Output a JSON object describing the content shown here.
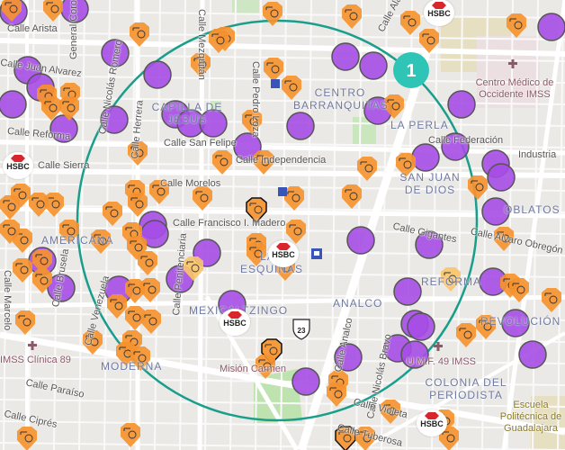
{
  "map": {
    "radius_circle_color": "#1a9e8c",
    "cluster": {
      "count": "1",
      "color": "#2ec4b6"
    },
    "colors": {
      "purple_marker": "#a64ce6",
      "orange_marker": "#f5922f",
      "light_marker": "#f9c46b",
      "background": "#ebe9e6"
    },
    "icons": {
      "orange_marker": "money-bag-gun-icon",
      "light_marker": "group-people-icon",
      "bank": "hsbc-bank-icon",
      "hospital": "medical-cross-icon",
      "transit": "bus-station-icon",
      "highway": "highway-shield-icon"
    },
    "streets": [
      "Calle Arista",
      "General Coronado",
      "Calle Nicolás Romero",
      "Calle Pedro Loza",
      "Calle Juan Alvarez",
      "Calle Reforma",
      "Calle San Felipe",
      "Calle Independencia",
      "Calle Morelos",
      "Calle Francisco I. Madero",
      "Calle Alameda",
      "Calle Federación",
      "Industria",
      "Calle Gigantes",
      "Calle Alvaro Obregón",
      "Calle Brusela",
      "Calle Venezuela",
      "Calle Penitenciaria",
      "Calle Nicolás Bravo",
      "Calle Analco",
      "Calle Paraíso",
      "Calle Ciprés",
      "Calle Tuberosa",
      "Calle Violeta",
      "Calle Herrera",
      "Calle Sierra",
      "Calle Marcelo",
      "Calle Mezquitán"
    ],
    "neighborhoods": [
      "CENTRO BARRANQUITAS",
      "LA PERLA",
      "SAN JUAN DE DIOS",
      "CAPILLA DE JESÚS",
      "AMERICANA",
      "LAS ESQUINAS",
      "MEXICALTZINGO",
      "ANALCO",
      "REFORMA",
      "COLONIA DEL PERIODISTA",
      "REVOLUCIÓN",
      "OBLATOS",
      "MODERNA"
    ],
    "pois": [
      "Centro Médico de Occidente IMSS",
      "IMSS Clínica 89",
      "U.M.F. 49 IMSS",
      "Misión Carmen",
      "Escuela Politécnica de Guadalajara"
    ],
    "bank_label": "HSBC",
    "highway_number": "23"
  }
}
